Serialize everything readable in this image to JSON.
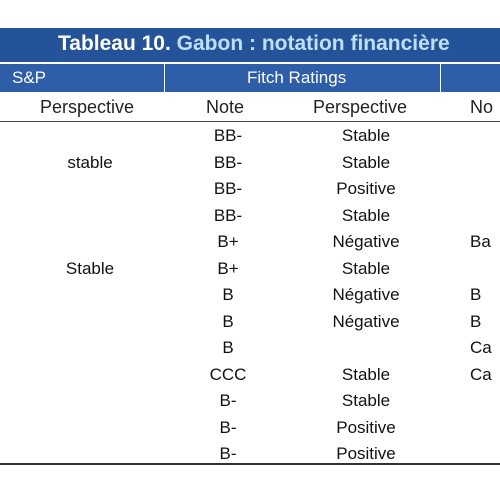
{
  "title": {
    "prefix": "Tableau 10.",
    "rest": " Gabon : notation financière"
  },
  "header": {
    "sp": "S&P",
    "fitch": "Fitch Ratings"
  },
  "subheader": {
    "sp_perspective": "Perspective",
    "fitch_note": "Note",
    "fitch_perspective": "Perspective",
    "moody_note": "No"
  },
  "rows": [
    {
      "sp": "",
      "note": "BB-",
      "perspective": "Stable",
      "moody": ""
    },
    {
      "sp": "stable",
      "note": "BB-",
      "perspective": "Stable",
      "moody": ""
    },
    {
      "sp": "",
      "note": "BB-",
      "perspective": "Positive",
      "moody": ""
    },
    {
      "sp": "",
      "note": "BB-",
      "perspective": "Stable",
      "moody": ""
    },
    {
      "sp": "",
      "note": "B+",
      "perspective": "Négative",
      "moody": "Ba"
    },
    {
      "sp": "Stable",
      "note": "B+",
      "perspective": "Stable",
      "moody": ""
    },
    {
      "sp": "",
      "note": "B",
      "perspective": "Négative",
      "moody": "B"
    },
    {
      "sp": "",
      "note": "B",
      "perspective": "Négative",
      "moody": "B"
    },
    {
      "sp": "",
      "note": "B",
      "perspective": "",
      "moody": "Ca"
    },
    {
      "sp": "",
      "note": "CCC",
      "perspective": "Stable",
      "moody": "Ca"
    },
    {
      "sp": "",
      "note": "B-",
      "perspective": "Stable",
      "moody": ""
    },
    {
      "sp": "",
      "note": "B-",
      "perspective": "Positive",
      "moody": ""
    },
    {
      "sp": "",
      "note": "B-",
      "perspective": "Positive",
      "moody": ""
    }
  ]
}
